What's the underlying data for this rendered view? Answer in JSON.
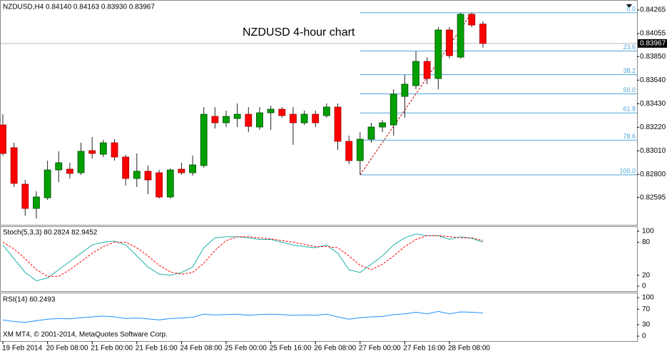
{
  "chart_data": [
    {
      "type": "candlestick",
      "header": "NZDUSD,H4 0.84140 0.84163 0.83930 0.83967",
      "annotation": "NZDUSD 4-hour chart",
      "footer": "XM MT4, © 2001-2014, MetaQuotes Software Corp.",
      "categories": [
        "19 Feb 2014",
        null,
        null,
        null,
        "20 Feb 08:00",
        null,
        null,
        null,
        "21 Feb 00:00",
        null,
        null,
        null,
        "21 Feb 16:00",
        null,
        null,
        null,
        "24 Feb 08:00",
        null,
        null,
        null,
        "25 Feb 00:00",
        null,
        null,
        null,
        "25 Feb 16:00",
        null,
        null,
        null,
        "26 Feb 08:00",
        null,
        null,
        null,
        "27 Feb 00:00",
        null,
        null,
        null,
        "27 Feb 16:00",
        null,
        null,
        null,
        "28 Feb 08:00",
        null,
        null,
        null
      ],
      "open": [
        0.83241,
        0.83038,
        0.82713,
        0.82497,
        0.82592,
        0.8284,
        0.82847,
        0.82815,
        0.83012,
        0.8298,
        0.83082,
        0.82955,
        0.82764,
        0.82828,
        0.82815,
        0.82599,
        0.82847,
        0.82815,
        0.82879,
        0.83317,
        0.8326,
        0.83298,
        0.83336,
        0.83222,
        0.83349,
        0.83381,
        0.83336,
        0.8326,
        0.83336,
        0.83324,
        0.834,
        0.83095,
        0.82923,
        0.83114,
        0.83222,
        0.83241,
        0.83495,
        0.83591,
        0.83807,
        0.83654,
        0.84087,
        0.83845,
        0.84227,
        0.8414
      ],
      "high": [
        0.83336,
        0.83082,
        0.82751,
        0.8265,
        0.82923,
        0.83006,
        0.82904,
        0.83082,
        0.83133,
        0.83107,
        0.83114,
        0.82974,
        0.82987,
        0.82879,
        0.8284,
        0.82853,
        0.82904,
        0.82968,
        0.834,
        0.834,
        0.83368,
        0.83432,
        0.834,
        0.834,
        0.83413,
        0.834,
        0.834,
        0.83368,
        0.83368,
        0.83432,
        0.83432,
        0.83146,
        0.83177,
        0.8326,
        0.83286,
        0.83559,
        0.83686,
        0.83896,
        0.83845,
        0.84112,
        0.84112,
        0.8424,
        0.8424,
        0.84163
      ],
      "low": [
        0.82968,
        0.82688,
        0.82433,
        0.82408,
        0.82573,
        0.82732,
        0.82764,
        0.82796,
        0.82942,
        0.82955,
        0.82923,
        0.827,
        0.82688,
        0.82624,
        0.82586,
        0.82586,
        0.82796,
        0.82789,
        0.82859,
        0.83209,
        0.83222,
        0.83222,
        0.83177,
        0.83197,
        0.83197,
        0.83305,
        0.83063,
        0.83241,
        0.83222,
        0.83305,
        0.83018,
        0.82891,
        0.82796,
        0.83082,
        0.83177,
        0.83146,
        0.83305,
        0.83559,
        0.83604,
        0.83559,
        0.83833,
        0.83833,
        0.84112,
        0.8393
      ],
      "close": [
        0.82987,
        0.8272,
        0.82497,
        0.82599,
        0.8284,
        0.82904,
        0.82809,
        0.83006,
        0.82987,
        0.83082,
        0.82955,
        0.82764,
        0.82828,
        0.82751,
        0.82599,
        0.8284,
        0.82815,
        0.82885,
        0.83336,
        0.8326,
        0.83317,
        0.83336,
        0.83228,
        0.83349,
        0.83381,
        0.83324,
        0.8326,
        0.83336,
        0.8326,
        0.834,
        0.83095,
        0.82923,
        0.83114,
        0.83222,
        0.8326,
        0.83515,
        0.83604,
        0.83807,
        0.83654,
        0.84087,
        0.83858,
        0.84227,
        0.84131,
        0.83967
      ],
      "up_color": "#00a000",
      "down_color": "#ff0000",
      "ylim": [
        0.82351,
        0.84354
      ],
      "yticks": [
        0.84265,
        0.84055,
        {
          "value": 0.8385,
          "label": "0.83850"
        },
        {
          "value": 0.8364,
          "label": "0.83640"
        },
        {
          "value": 0.8343,
          "label": "0.83430"
        },
        {
          "value": 0.8322,
          "label": "0.83220"
        },
        {
          "value": 0.8301,
          "label": "0.83010"
        },
        {
          "value": 0.828,
          "label": "0.82800"
        },
        0.82595
      ],
      "last_price": 0.83967,
      "fibonacci": {
        "low": 0.82796,
        "high": 0.8424,
        "color": "#4da6d8",
        "levels": [
          {
            "value": 0,
            "label": "0.0"
          },
          23.6,
          38.2,
          {
            "value": 50,
            "label": "50.0"
          },
          61.8,
          78.6,
          {
            "value": 100,
            "label": "100.0"
          }
        ]
      }
    },
    {
      "type": "line",
      "header": "Stoch(5,3,3) 80.2824 82.9452",
      "ylim": [
        -9,
        109
      ],
      "yticks": [
        0,
        20,
        80,
        100
      ],
      "series": [
        {
          "color": "#20b2aa",
          "values": [
            75,
            50,
            25,
            10,
            15,
            30,
            45,
            60,
            75,
            80,
            82,
            75,
            55,
            35,
            22,
            20,
            25,
            35,
            70,
            88,
            90,
            90,
            88,
            85,
            85,
            80,
            75,
            72,
            70,
            75,
            60,
            30,
            25,
            40,
            55,
            75,
            88,
            95,
            92,
            92,
            85,
            90,
            87,
            80.2824
          ]
        },
        {
          "color": "#ff0000",
          "dashed": true,
          "values": [
            80,
            68,
            50,
            30,
            18,
            18,
            30,
            45,
            60,
            72,
            80,
            80,
            70,
            55,
            38,
            26,
            22,
            25,
            42,
            65,
            83,
            90,
            90,
            88,
            86,
            83,
            80,
            76,
            72,
            72,
            70,
            55,
            38,
            30,
            40,
            55,
            72,
            85,
            92,
            92,
            90,
            88,
            88,
            82.9452
          ]
        }
      ]
    },
    {
      "type": "line",
      "header": "RSI(14) 60.2493",
      "ylim": [
        -13,
        113
      ],
      "yticks": [
        0,
        30,
        70,
        100
      ],
      "series": [
        {
          "color": "#1e90ff",
          "values": [
            42,
            38,
            36,
            40,
            44,
            46,
            45,
            48,
            50,
            52,
            50,
            46,
            47,
            45,
            42,
            46,
            47,
            49,
            57,
            55,
            56,
            57,
            54,
            56,
            57,
            56,
            54,
            55,
            54,
            57,
            50,
            44,
            48,
            50,
            51,
            56,
            58,
            62,
            58,
            64,
            58,
            63,
            62,
            60.2493
          ]
        }
      ]
    }
  ]
}
